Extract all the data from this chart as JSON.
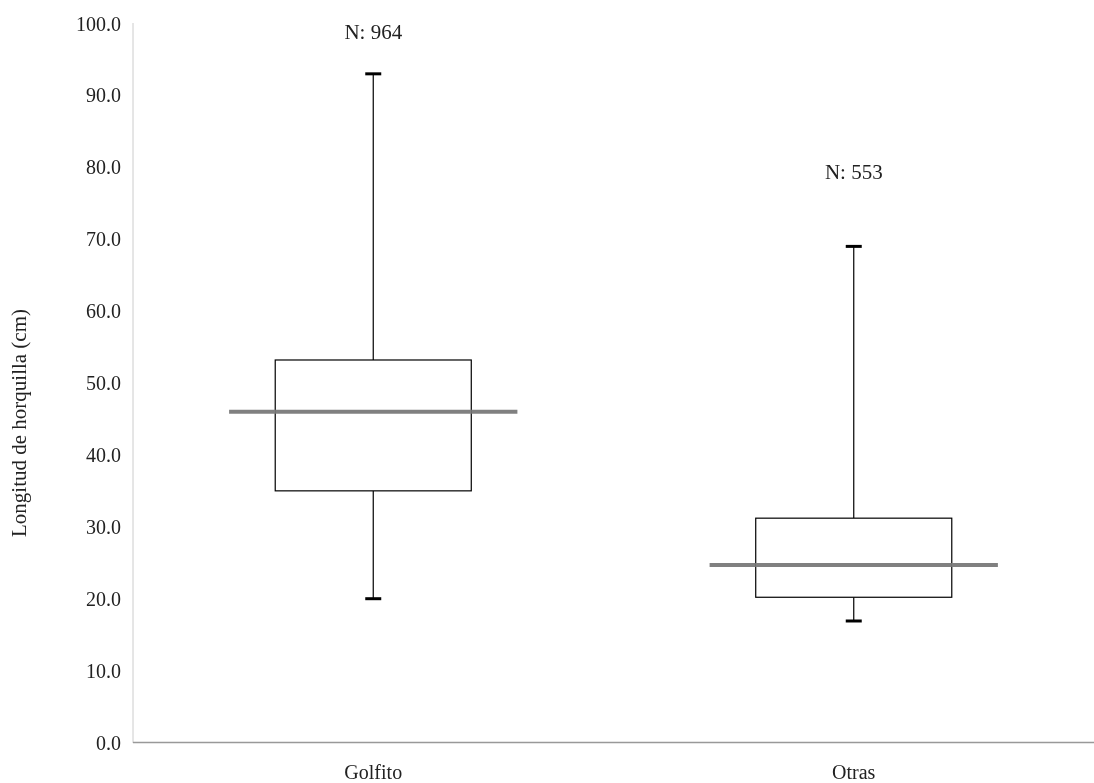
{
  "chart_data": {
    "type": "box",
    "ylabel": "Longitud de horquilla (cm)",
    "categories": [
      "Golfito",
      "Otras"
    ],
    "boxes": [
      {
        "low": 20,
        "q1": 35,
        "median": 46,
        "q3": 53.2,
        "high": 93
      },
      {
        "low": 16.9,
        "q1": 20.2,
        "median": 24.7,
        "q3": 31.2,
        "high": 69
      }
    ],
    "ylim": [
      0,
      100
    ],
    "yticks": [
      {
        "value": 0,
        "label": "0.0"
      },
      {
        "value": 10,
        "label": "10.0"
      },
      {
        "value": 20,
        "label": "20.0"
      },
      {
        "value": 30,
        "label": "30.0"
      },
      {
        "value": 40,
        "label": "40.0"
      },
      {
        "value": 50,
        "label": "50.0"
      },
      {
        "value": 60,
        "label": "60.0"
      },
      {
        "value": 70,
        "label": "70.0"
      },
      {
        "value": 80,
        "label": "80.0"
      },
      {
        "value": 90,
        "label": "90.0"
      },
      {
        "value": 100,
        "label": "100.0"
      }
    ],
    "annotations": [
      "N: 964",
      "N: 553"
    ]
  }
}
